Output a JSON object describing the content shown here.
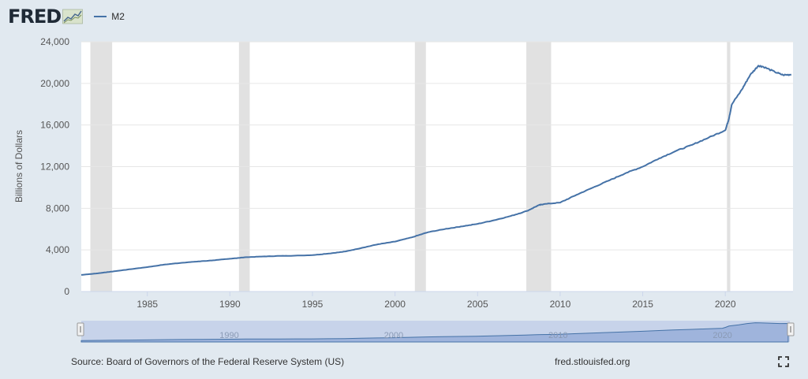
{
  "header": {
    "logo_text": "FRED",
    "legend_label": "M2"
  },
  "footer": {
    "source": "Source: Board of Governors of the Federal Reserve System (US)",
    "site": "fred.stlouisfed.org"
  },
  "colors": {
    "series": "#4572a7",
    "background": "#e1e9f0",
    "recession": "#e1e1e1",
    "navigator_fill": "#9fb4dc"
  },
  "chart_data": {
    "type": "line",
    "title": "",
    "xlabel": "",
    "ylabel": "Billions of Dollars",
    "xlim": [
      1981.0,
      2024.1
    ],
    "ylim": [
      0,
      24000
    ],
    "yticks": [
      0,
      4000,
      8000,
      12000,
      16000,
      20000,
      24000
    ],
    "ytick_labels": [
      "0",
      "4,000",
      "8,000",
      "12,000",
      "16,000",
      "20,000",
      "24,000"
    ],
    "xticks": [
      1985,
      1990,
      1995,
      2000,
      2005,
      2010,
      2015,
      2020
    ],
    "xtick_labels": [
      "1985",
      "1990",
      "1995",
      "2000",
      "2005",
      "2010",
      "2015",
      "2020"
    ],
    "navigator_labels": [
      "1990",
      "2000",
      "2010",
      "2020"
    ],
    "grid": true,
    "legend_position": "top-left",
    "recessions": [
      [
        1981.55,
        1982.87
      ],
      [
        1990.55,
        1991.2
      ],
      [
        2001.2,
        2001.87
      ],
      [
        2007.95,
        2009.45
      ],
      [
        2020.1,
        2020.3
      ]
    ],
    "series": [
      {
        "name": "M2",
        "x": [
          1981.0,
          1982.0,
          1983.0,
          1984.0,
          1985.0,
          1986.0,
          1987.0,
          1988.0,
          1989.0,
          1990.0,
          1991.0,
          1992.0,
          1993.0,
          1994.0,
          1995.0,
          1996.0,
          1997.0,
          1998.0,
          1999.0,
          2000.0,
          2001.0,
          2002.0,
          2003.0,
          2004.0,
          2005.0,
          2006.0,
          2007.0,
          2008.0,
          2008.7,
          2009.0,
          2010.0,
          2011.0,
          2012.0,
          2013.0,
          2014.0,
          2015.0,
          2016.0,
          2017.0,
          2018.0,
          2019.0,
          2020.0,
          2020.2,
          2020.4,
          2021.0,
          2021.5,
          2022.0,
          2022.3,
          2023.0,
          2023.5,
          2024.0
        ],
        "y": [
          1600,
          1750,
          1950,
          2150,
          2350,
          2580,
          2750,
          2880,
          3000,
          3150,
          3300,
          3370,
          3420,
          3450,
          3500,
          3650,
          3850,
          4200,
          4550,
          4800,
          5200,
          5700,
          6000,
          6250,
          6500,
          6850,
          7250,
          7750,
          8300,
          8400,
          8550,
          9300,
          10000,
          10700,
          11400,
          12000,
          12800,
          13500,
          14100,
          14800,
          15500,
          16500,
          18000,
          19400,
          20800,
          21700,
          21600,
          21100,
          20800,
          20850
        ]
      }
    ]
  }
}
